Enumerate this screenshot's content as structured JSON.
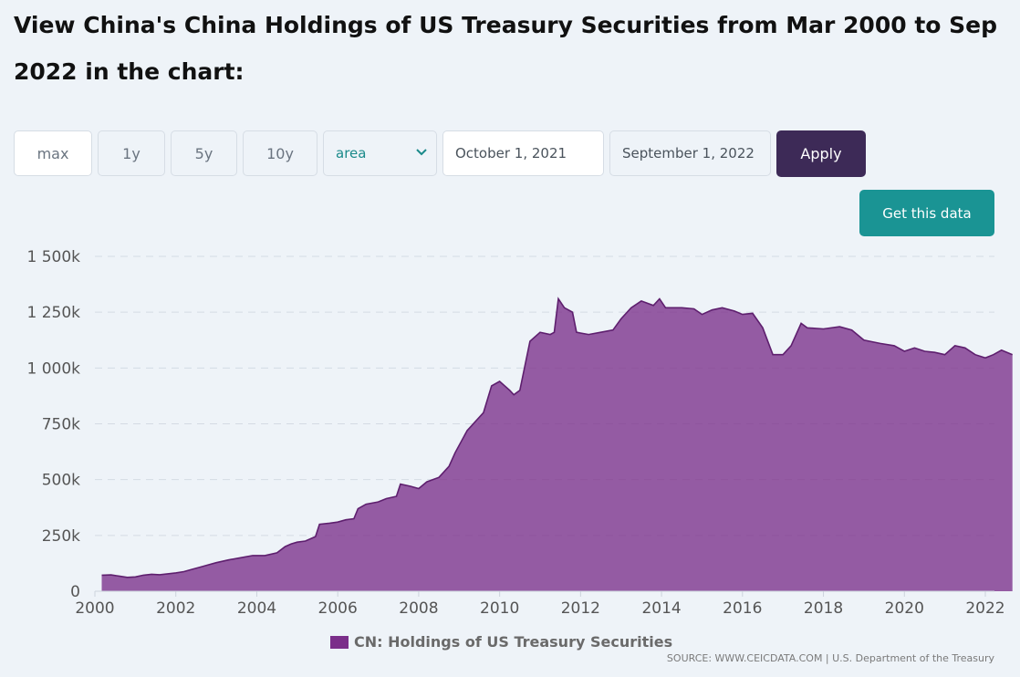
{
  "page": {
    "title": "View China's China Holdings of US Treasury Securities from Mar 2000 to Sep 2022 in the chart:"
  },
  "controls": {
    "ranges": [
      {
        "label": "max",
        "active": true
      },
      {
        "label": "1y",
        "active": false
      },
      {
        "label": "5y",
        "active": false
      },
      {
        "label": "10y",
        "active": false
      }
    ],
    "chart_type": "area",
    "date_from": "October 1, 2021",
    "date_to": "September 1, 2022",
    "apply_label": "Apply",
    "get_data_label": "Get this data"
  },
  "source": "SOURCE: WWW.CEICDATA.COM | U.S. Department of the Treasury",
  "colors": {
    "series": "#7b2f8a",
    "apply": "#3d2a57",
    "get_data": "#1a9494"
  },
  "chart_data": {
    "type": "area",
    "xlim": [
      2000,
      2022.5
    ],
    "ylim": [
      0,
      1500
    ],
    "x_ticks": [
      2000,
      2002,
      2004,
      2006,
      2008,
      2010,
      2012,
      2014,
      2016,
      2018,
      2020,
      2022
    ],
    "x_tick_labels": [
      "2000",
      "2002",
      "2004",
      "2006",
      "2008",
      "2010",
      "2012",
      "2014",
      "2016",
      "2018",
      "2020",
      "2022"
    ],
    "y_ticks": [
      0,
      250,
      500,
      750,
      1000,
      1250,
      1500
    ],
    "y_tick_labels": [
      "0",
      "250k",
      "500k",
      "750k",
      "1 000k",
      "1 250k",
      "1 500k"
    ],
    "grid": true,
    "legend_position": "bottom",
    "series": [
      {
        "name": "CN: Holdings of US Treasury Securities",
        "color": "#7b2f8a",
        "x": [
          2000.17,
          2000.4,
          2000.6,
          2000.8,
          2001.0,
          2001.2,
          2001.4,
          2001.6,
          2001.8,
          2002.0,
          2002.2,
          2002.4,
          2002.6,
          2002.8,
          2003.0,
          2003.3,
          2003.6,
          2003.9,
          2004.2,
          2004.5,
          2004.7,
          2004.85,
          2005.0,
          2005.2,
          2005.45,
          2005.55,
          2005.8,
          2006.0,
          2006.2,
          2006.4,
          2006.5,
          2006.7,
          2007.0,
          2007.2,
          2007.45,
          2007.55,
          2007.8,
          2008.0,
          2008.2,
          2008.5,
          2008.75,
          2008.9,
          2009.2,
          2009.3,
          2009.45,
          2009.6,
          2009.8,
          2010.0,
          2010.25,
          2010.35,
          2010.5,
          2010.75,
          2011.0,
          2011.25,
          2011.35,
          2011.45,
          2011.6,
          2011.8,
          2011.9,
          2012.2,
          2012.5,
          2012.8,
          2013.0,
          2013.25,
          2013.5,
          2013.8,
          2013.95,
          2014.1,
          2014.5,
          2014.8,
          2015.0,
          2015.25,
          2015.5,
          2015.8,
          2016.0,
          2016.25,
          2016.5,
          2016.75,
          2017.0,
          2017.2,
          2017.45,
          2017.6,
          2018.0,
          2018.4,
          2018.7,
          2019.0,
          2019.4,
          2019.75,
          2020.0,
          2020.25,
          2020.5,
          2020.75,
          2021.0,
          2021.25,
          2021.5,
          2021.75,
          2022.0,
          2022.2,
          2022.4,
          2022.67
        ],
        "y": [
          72,
          73,
          68,
          62,
          64,
          72,
          76,
          74,
          78,
          82,
          88,
          98,
          108,
          118,
          128,
          140,
          150,
          160,
          160,
          172,
          200,
          212,
          220,
          225,
          245,
          300,
          305,
          310,
          320,
          325,
          370,
          390,
          400,
          415,
          425,
          480,
          470,
          460,
          490,
          510,
          560,
          620,
          720,
          740,
          770,
          800,
          920,
          940,
          900,
          880,
          900,
          1120,
          1160,
          1150,
          1160,
          1310,
          1270,
          1250,
          1160,
          1150,
          1160,
          1170,
          1220,
          1270,
          1300,
          1280,
          1310,
          1270,
          1270,
          1265,
          1240,
          1260,
          1270,
          1255,
          1240,
          1245,
          1180,
          1060,
          1060,
          1100,
          1200,
          1180,
          1175,
          1185,
          1170,
          1125,
          1110,
          1100,
          1075,
          1090,
          1075,
          1070,
          1060,
          1100,
          1090,
          1060,
          1045,
          1060,
          1080,
          1060
        ]
      }
    ]
  }
}
